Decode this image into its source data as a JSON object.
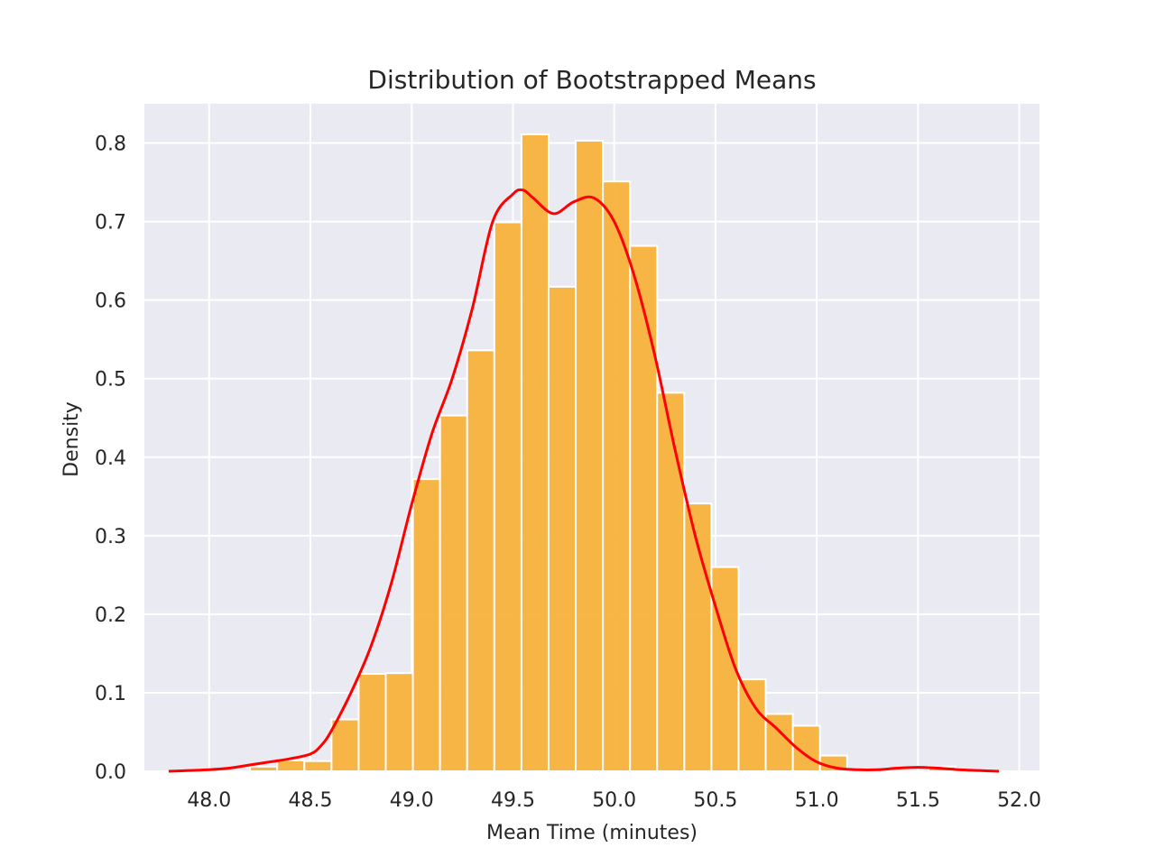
{
  "chart_data": {
    "type": "bar",
    "title": "Distribution of Bootstrapped Means",
    "xlabel": "Mean Time (minutes)",
    "ylabel": "Density",
    "xlim": [
      47.68,
      52.1
    ],
    "ylim": [
      0,
      0.85
    ],
    "xticks": [
      48.0,
      48.5,
      49.0,
      49.5,
      50.0,
      50.5,
      51.0,
      51.5,
      52.0
    ],
    "xtick_labels": [
      "48.0",
      "48.5",
      "49.0",
      "49.5",
      "50.0",
      "50.5",
      "51.0",
      "51.5",
      "52.0"
    ],
    "yticks": [
      0.0,
      0.1,
      0.2,
      0.3,
      0.4,
      0.5,
      0.6,
      0.7,
      0.8
    ],
    "ytick_labels": [
      "0.0",
      "0.1",
      "0.2",
      "0.3",
      "0.4",
      "0.5",
      "0.6",
      "0.7",
      "0.8"
    ],
    "grid": true,
    "bar_color": "#f7b23b",
    "kde_color": "#ff0000",
    "background_color": "#eaeaf2",
    "bins": {
      "edges": [
        47.8,
        47.934,
        48.068,
        48.202,
        48.336,
        48.47,
        48.604,
        48.738,
        48.872,
        49.006,
        49.14,
        49.274,
        49.408,
        49.542,
        49.676,
        49.81,
        49.944,
        50.078,
        50.212,
        50.346,
        50.48,
        50.614,
        50.748,
        50.882,
        51.016,
        51.15,
        51.284,
        51.418,
        51.552,
        51.686,
        51.82
      ],
      "densities": [
        0.0,
        0.0,
        0.0,
        0.006,
        0.014,
        0.013,
        0.066,
        0.124,
        0.125,
        0.372,
        0.453,
        0.536,
        0.699,
        0.811,
        0.617,
        0.803,
        0.751,
        0.669,
        0.482,
        0.341,
        0.26,
        0.117,
        0.073,
        0.058,
        0.02,
        0.0,
        0.0,
        0.0,
        0.006,
        0.0
      ]
    },
    "kde": {
      "x": [
        47.8,
        47.9,
        48.0,
        48.1,
        48.2,
        48.3,
        48.4,
        48.5,
        48.55,
        48.6,
        48.7,
        48.8,
        48.9,
        49.0,
        49.1,
        49.2,
        49.3,
        49.4,
        49.5,
        49.55,
        49.6,
        49.7,
        49.8,
        49.9,
        50.0,
        50.1,
        50.2,
        50.3,
        50.4,
        50.5,
        50.6,
        50.7,
        50.8,
        50.9,
        51.0,
        51.1,
        51.2,
        51.3,
        51.4,
        51.5,
        51.6,
        51.7,
        51.8,
        51.9
      ],
      "y": [
        0.0,
        0.001,
        0.002,
        0.004,
        0.008,
        0.012,
        0.016,
        0.022,
        0.032,
        0.05,
        0.1,
        0.16,
        0.24,
        0.34,
        0.43,
        0.5,
        0.59,
        0.7,
        0.735,
        0.74,
        0.73,
        0.71,
        0.725,
        0.73,
        0.7,
        0.63,
        0.53,
        0.41,
        0.3,
        0.21,
        0.13,
        0.08,
        0.055,
        0.03,
        0.012,
        0.004,
        0.002,
        0.002,
        0.004,
        0.005,
        0.004,
        0.002,
        0.001,
        0.0
      ]
    }
  }
}
